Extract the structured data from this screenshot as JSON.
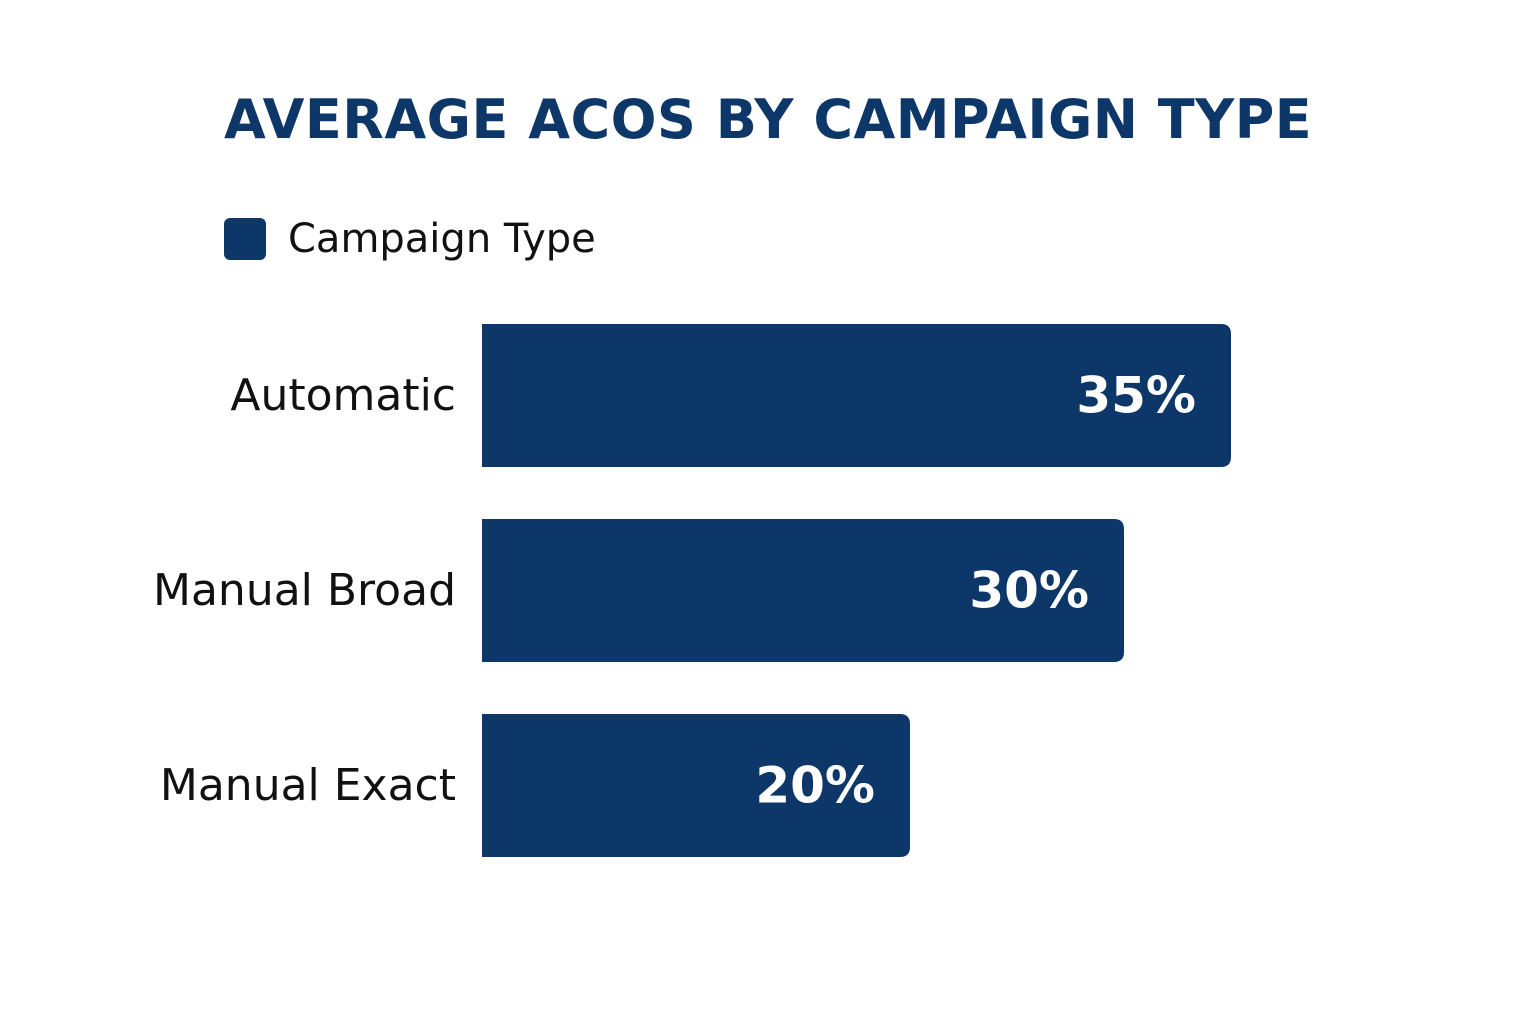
{
  "chart_data": {
    "type": "bar",
    "orientation": "horizontal",
    "title": "AVERAGE ACOS BY CAMPAIGN TYPE",
    "categories": [
      "Automatic",
      "Manual Broad",
      "Manual Exact"
    ],
    "series": [
      {
        "name": "Campaign Type",
        "values": [
          35,
          30,
          20
        ],
        "value_labels": [
          "35%",
          "30%",
          "20%"
        ],
        "color": "#0d3768"
      }
    ],
    "value_unit": "%",
    "xlim": [
      0,
      50
    ],
    "grid": false,
    "legend_position": "top-left"
  }
}
